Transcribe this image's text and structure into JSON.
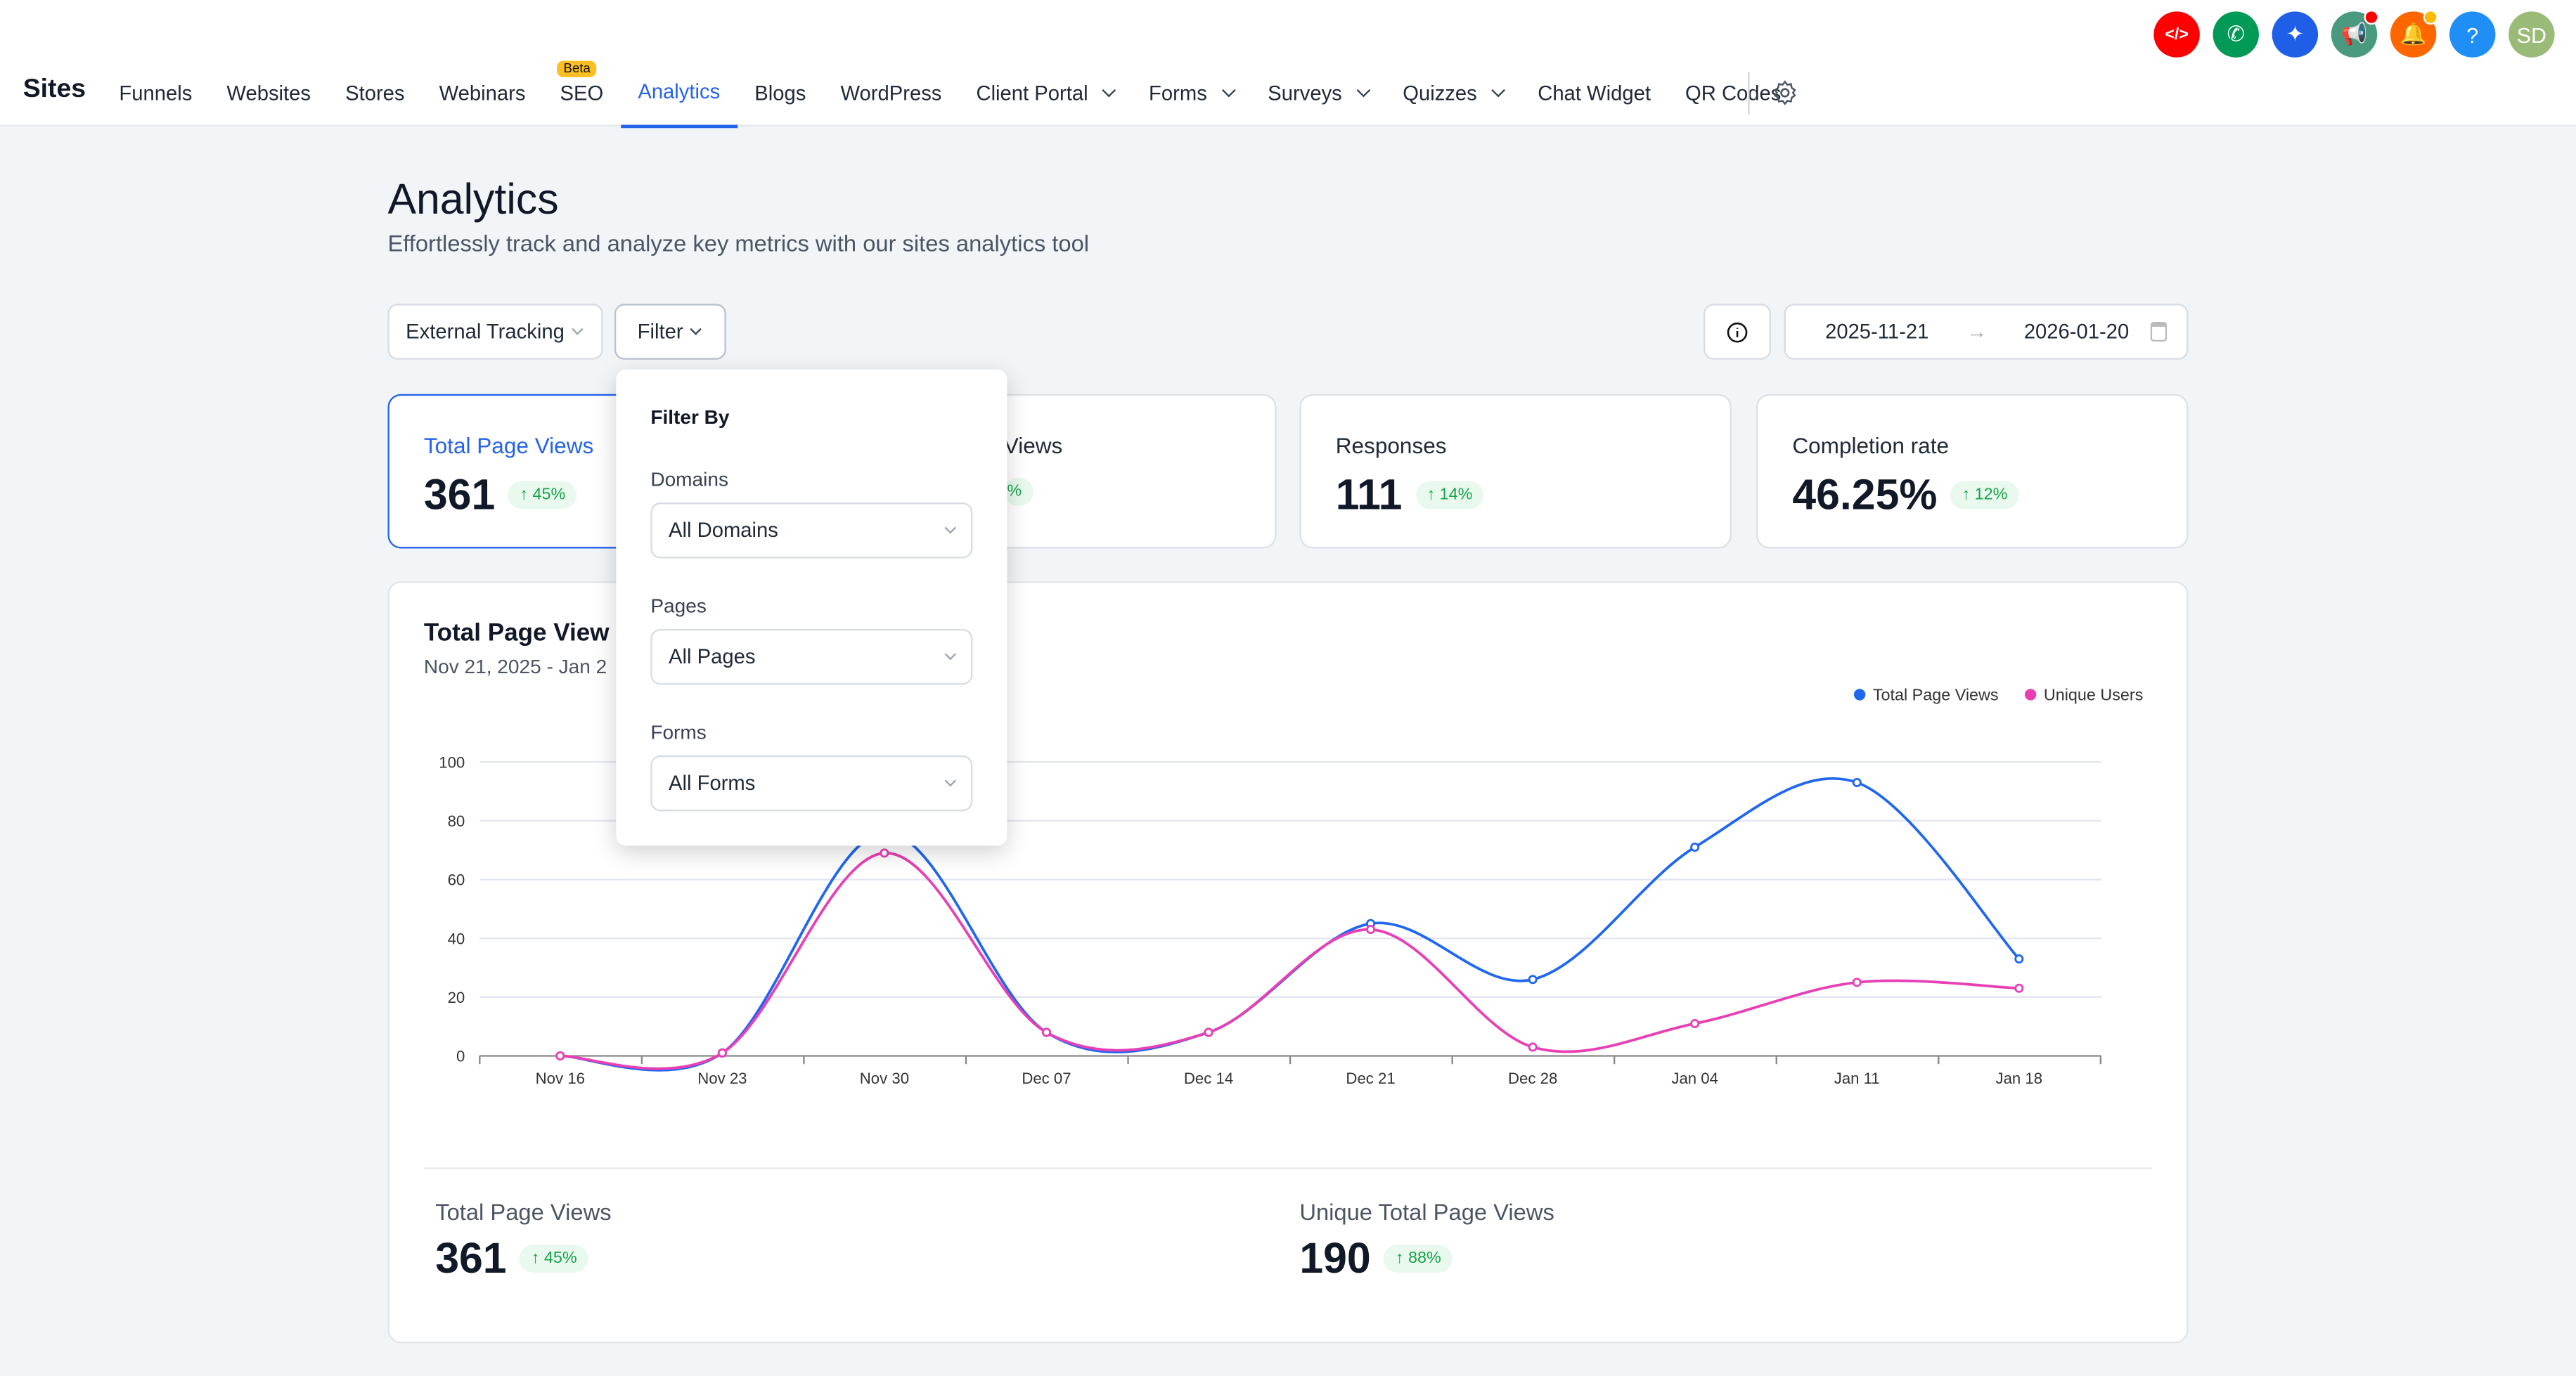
{
  "topbar": {
    "brand": "Sites",
    "nav": [
      {
        "label": "Funnels"
      },
      {
        "label": "Websites"
      },
      {
        "label": "Stores"
      },
      {
        "label": "Webinars"
      },
      {
        "label": "SEO",
        "badge": "Beta"
      },
      {
        "label": "Analytics",
        "active": true
      },
      {
        "label": "Blogs"
      },
      {
        "label": "WordPress"
      },
      {
        "label": "Client Portal",
        "dropdown": true
      },
      {
        "label": "Forms",
        "dropdown": true
      },
      {
        "label": "Surveys",
        "dropdown": true
      },
      {
        "label": "Quizzes",
        "dropdown": true
      },
      {
        "label": "Chat Widget"
      },
      {
        "label": "QR Codes"
      }
    ],
    "icons": [
      {
        "name": "code-icon",
        "color": "#ff0000",
        "glyph": "</>"
      },
      {
        "name": "phone-icon",
        "color": "#009955",
        "glyph": "✆"
      },
      {
        "name": "sparkle-icon",
        "color": "#1f5fe8",
        "glyph": "✦"
      },
      {
        "name": "megaphone-icon",
        "color": "#4a9a80",
        "glyph": "📢",
        "dot": "#ff0000"
      },
      {
        "name": "bell-icon",
        "color": "#ff6600",
        "glyph": "🔔",
        "dot": "#ffbb00"
      },
      {
        "name": "help-icon",
        "color": "#1f8ef5",
        "glyph": "?"
      },
      {
        "name": "avatar",
        "color": "#99bb77",
        "glyph": "SD"
      }
    ]
  },
  "page": {
    "title": "Analytics",
    "subtitle": "Effortlessly track and analyze key metrics with our sites analytics tool"
  },
  "toolbar": {
    "tracking": "External Tracking",
    "filter": "Filter",
    "date_start": "2025-11-21",
    "date_end": "2026-01-20"
  },
  "cards": [
    {
      "title": "Total Page Views",
      "value": "361",
      "change": "↑ 45%"
    },
    {
      "title": "Views",
      "value": "",
      "change": "%"
    },
    {
      "title": "Responses",
      "value": "111",
      "change": "↑ 14%"
    },
    {
      "title": "Completion rate",
      "value": "46.25%",
      "change": "↑ 12%"
    }
  ],
  "filter_popup": {
    "title": "Filter By",
    "domains_label": "Domains",
    "domains_value": "All Domains",
    "pages_label": "Pages",
    "pages_value": "All Pages",
    "forms_label": "Forms",
    "forms_value": "All Forms"
  },
  "chart_card": {
    "title": "Total Page View",
    "range": "Nov 21, 2025 - Jan 2"
  },
  "chart_data": {
    "type": "line",
    "x": [
      "Nov 16",
      "Nov 23",
      "Nov 30",
      "Dec 07",
      "Dec 14",
      "Dec 21",
      "Dec 28",
      "Jan 04",
      "Jan 11",
      "Jan 18"
    ],
    "series": [
      {
        "name": "Total Page Views",
        "color": "#1f66f0",
        "values": [
          0,
          1,
          76,
          8,
          8,
          45,
          26,
          71,
          93,
          33
        ]
      },
      {
        "name": "Unique Users",
        "color": "#e83fb5",
        "values": [
          0,
          1,
          69,
          8,
          8,
          43,
          3,
          11,
          25,
          23
        ]
      }
    ],
    "yticks": [
      0,
      20,
      40,
      60,
      80,
      100
    ],
    "ylim": [
      0,
      100
    ],
    "grid": true,
    "legend": "top-right"
  },
  "summary": [
    {
      "title": "Total Page Views",
      "value": "361",
      "change": "↑ 45%"
    },
    {
      "title": "Unique Total Page Views",
      "value": "190",
      "change": "↑ 88%"
    }
  ]
}
